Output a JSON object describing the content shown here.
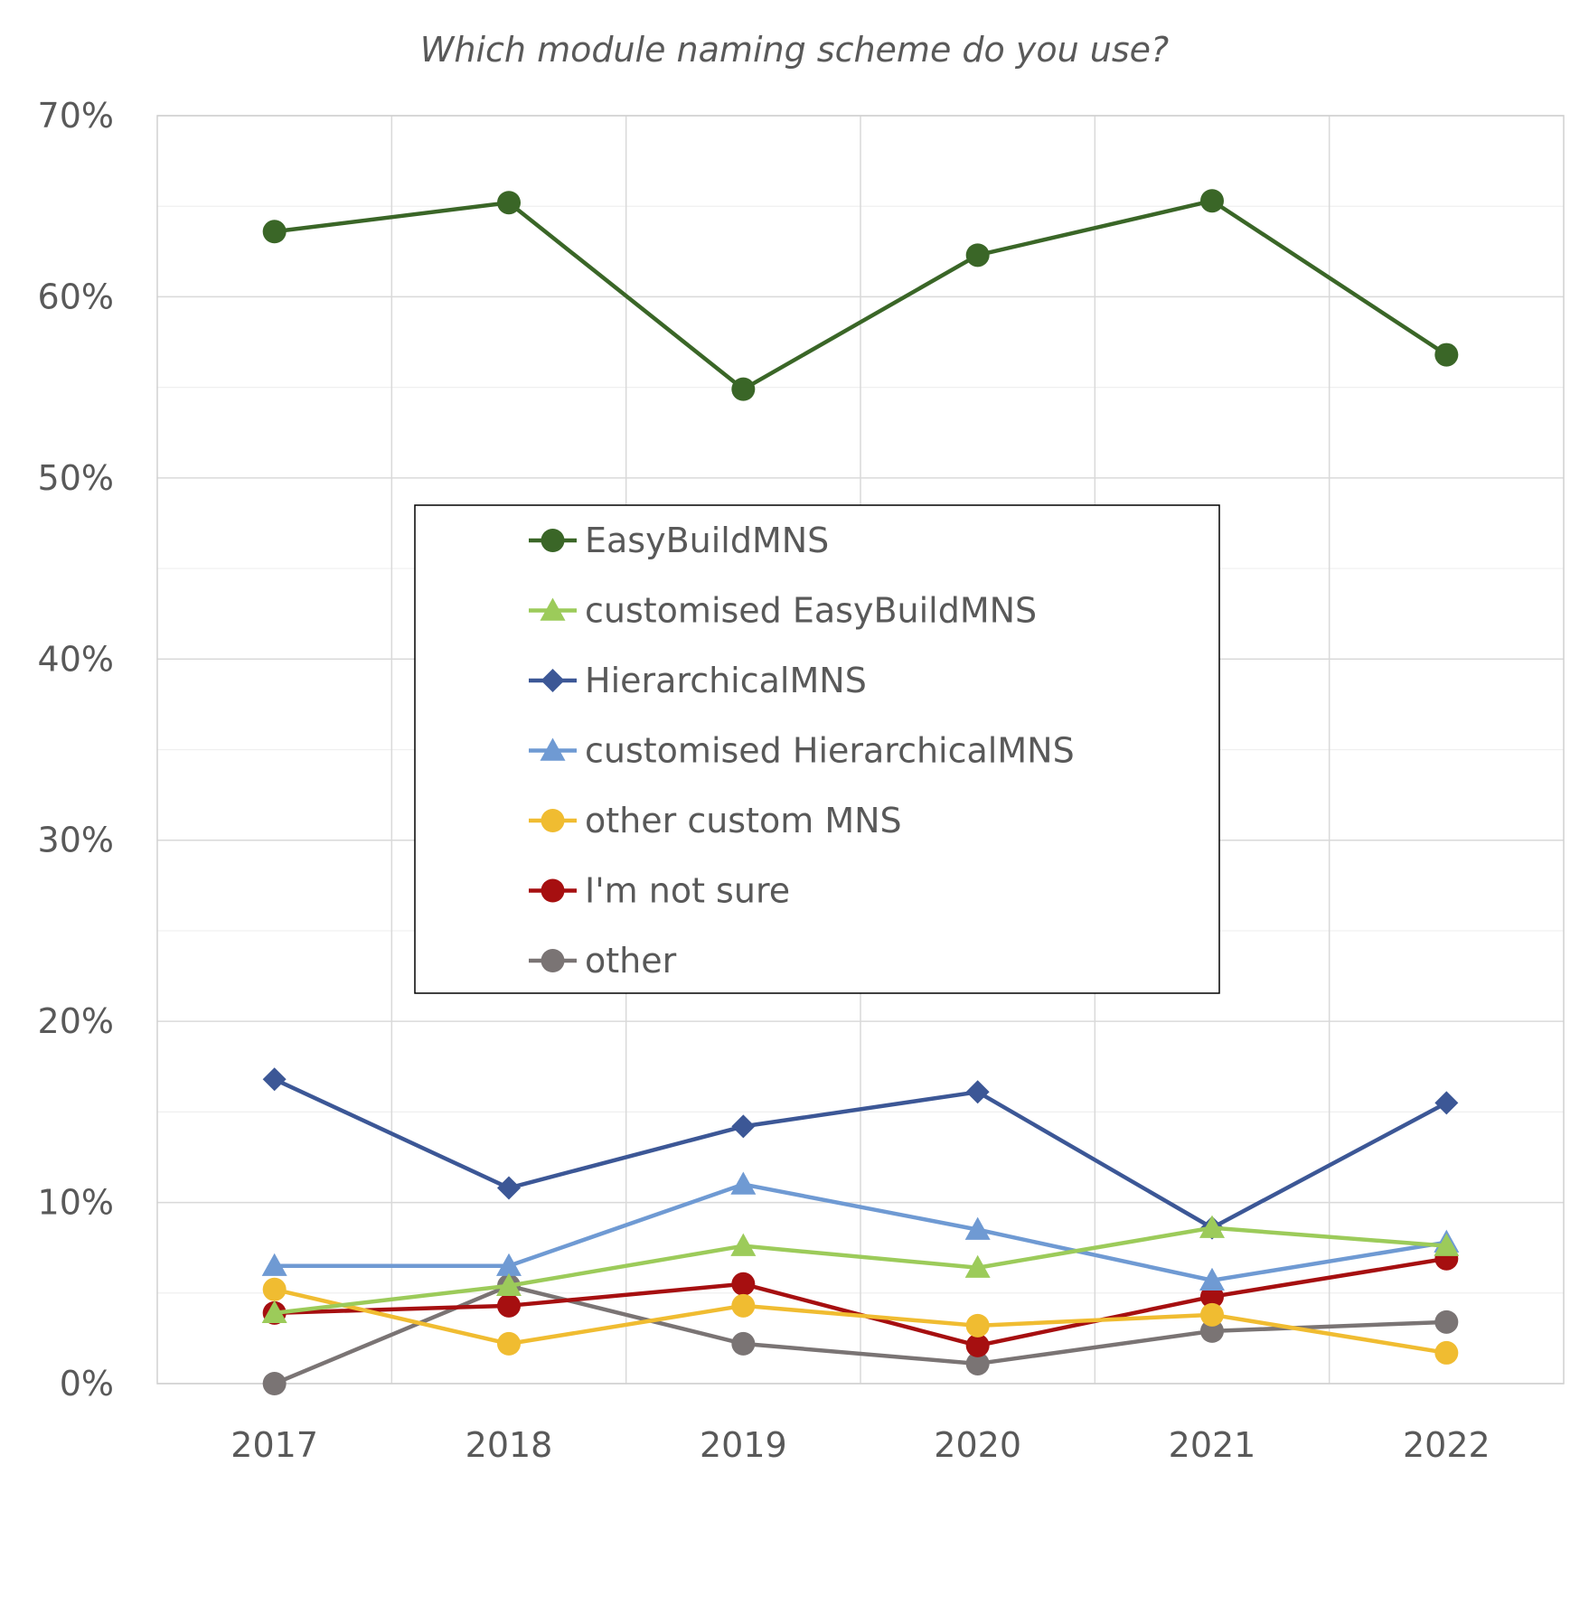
{
  "chart_data": {
    "type": "line",
    "title": "Which module naming scheme do you use?",
    "xlabel": "",
    "ylabel": "",
    "categories": [
      "2017",
      "2018",
      "2019",
      "2020",
      "2021",
      "2022"
    ],
    "ylim": [
      0,
      70
    ],
    "y_ticks": [
      "0%",
      "10%",
      "20%",
      "30%",
      "40%",
      "50%",
      "60%",
      "70%"
    ],
    "y_tick_values": [
      0,
      10,
      20,
      30,
      40,
      50,
      60,
      70
    ],
    "grid": true,
    "legend_placement": "center",
    "series": [
      {
        "name": "EasyBuildMNS",
        "values": [
          63.6,
          65.2,
          54.9,
          62.3,
          65.3,
          56.8
        ],
        "color": "#3a6627",
        "marker": "circle"
      },
      {
        "name": "customised EasyBuildMNS",
        "values": [
          3.9,
          5.4,
          7.6,
          6.4,
          8.6,
          7.6
        ],
        "color": "#9ccb5a",
        "marker": "triangle"
      },
      {
        "name": "HierarchicalMNS",
        "values": [
          16.8,
          10.8,
          14.2,
          16.1,
          8.6,
          15.5
        ],
        "color": "#3c5796",
        "marker": "diamond"
      },
      {
        "name": "customised HierarchicalMNS",
        "values": [
          6.5,
          6.5,
          11.0,
          8.5,
          5.7,
          7.8
        ],
        "color": "#6f9ad3",
        "marker": "triangle"
      },
      {
        "name": "other custom MNS",
        "values": [
          5.2,
          2.2,
          4.3,
          3.2,
          3.8,
          1.7
        ],
        "color": "#f0bc31",
        "marker": "circle"
      },
      {
        "name": "I'm not sure",
        "values": [
          3.9,
          4.3,
          5.5,
          2.1,
          4.8,
          6.9
        ],
        "color": "#a60f10",
        "marker": "circle"
      },
      {
        "name": "other",
        "values": [
          0.0,
          5.4,
          2.2,
          1.1,
          2.9,
          3.4
        ],
        "color": "#7a7474",
        "marker": "circle"
      }
    ]
  }
}
